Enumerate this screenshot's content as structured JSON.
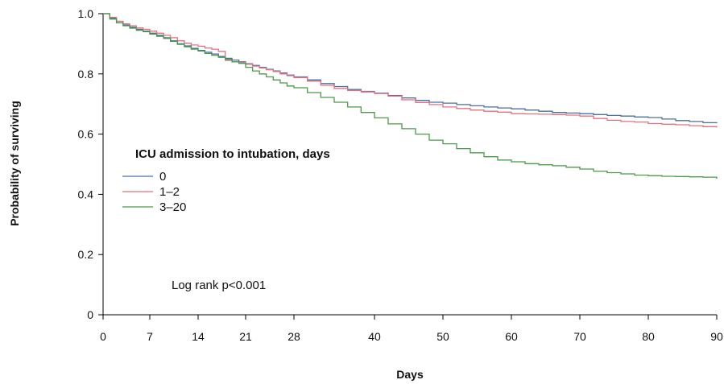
{
  "chart_data": {
    "type": "line",
    "subtype": "step",
    "xlabel": "Days",
    "ylabel": "Probability of surviving",
    "xlim": [
      0,
      90
    ],
    "ylim": [
      0,
      1.0
    ],
    "x_ticks": [
      0,
      7,
      14,
      21,
      28,
      40,
      50,
      60,
      70,
      80,
      90
    ],
    "y_ticks": [
      0,
      0.2,
      0.4,
      0.6,
      0.8,
      1.0
    ],
    "y_tick_labels": [
      "0",
      "0.2",
      "0.4",
      "0.6",
      "0.8",
      "1.0"
    ],
    "x_axis_scale": "piecewise: days 0-28 wider spacing, days 28-90 compressed",
    "grid": false,
    "legend_title": "ICU admission to intubation, days",
    "legend_position": "left-middle",
    "annotation": "Log rank p<0.001",
    "series": [
      {
        "name": "0",
        "color": "#4a6fa5",
        "x": [
          0,
          1,
          2,
          3,
          4,
          5,
          6,
          7,
          8,
          9,
          10,
          11,
          12,
          13,
          14,
          15,
          16,
          17,
          18,
          19,
          20,
          21,
          22,
          23,
          24,
          25,
          26,
          27,
          28,
          30,
          32,
          34,
          36,
          38,
          40,
          42,
          44,
          46,
          48,
          50,
          52,
          54,
          56,
          58,
          60,
          62,
          64,
          66,
          68,
          70,
          72,
          74,
          76,
          78,
          80,
          82,
          84,
          86,
          88,
          90
        ],
        "y": [
          1.0,
          0.985,
          0.97,
          0.962,
          0.955,
          0.948,
          0.942,
          0.935,
          0.928,
          0.92,
          0.91,
          0.9,
          0.893,
          0.885,
          0.878,
          0.872,
          0.866,
          0.858,
          0.852,
          0.846,
          0.84,
          0.834,
          0.828,
          0.822,
          0.815,
          0.81,
          0.803,
          0.796,
          0.79,
          0.78,
          0.768,
          0.758,
          0.748,
          0.742,
          0.736,
          0.728,
          0.72,
          0.712,
          0.706,
          0.703,
          0.698,
          0.694,
          0.69,
          0.687,
          0.684,
          0.68,
          0.676,
          0.672,
          0.67,
          0.668,
          0.665,
          0.662,
          0.66,
          0.657,
          0.655,
          0.65,
          0.645,
          0.642,
          0.638,
          0.636
        ]
      },
      {
        "name": "1–2",
        "color": "#e8707e",
        "x": [
          0,
          1,
          2,
          3,
          4,
          5,
          6,
          7,
          8,
          9,
          10,
          11,
          12,
          13,
          14,
          15,
          16,
          17,
          18,
          19,
          20,
          21,
          22,
          23,
          24,
          25,
          26,
          27,
          28,
          30,
          32,
          34,
          36,
          38,
          40,
          42,
          44,
          46,
          48,
          50,
          52,
          54,
          56,
          58,
          60,
          62,
          64,
          66,
          68,
          70,
          72,
          74,
          76,
          78,
          80,
          82,
          84,
          86,
          88,
          90
        ],
        "y": [
          1.0,
          0.988,
          0.975,
          0.966,
          0.96,
          0.953,
          0.948,
          0.942,
          0.935,
          0.928,
          0.92,
          0.91,
          0.902,
          0.896,
          0.892,
          0.886,
          0.882,
          0.875,
          0.845,
          0.84,
          0.838,
          0.832,
          0.826,
          0.82,
          0.814,
          0.808,
          0.8,
          0.794,
          0.788,
          0.776,
          0.762,
          0.752,
          0.745,
          0.74,
          0.735,
          0.726,
          0.714,
          0.705,
          0.698,
          0.69,
          0.685,
          0.68,
          0.676,
          0.673,
          0.668,
          0.667,
          0.666,
          0.665,
          0.663,
          0.66,
          0.652,
          0.646,
          0.642,
          0.64,
          0.635,
          0.633,
          0.631,
          0.628,
          0.625,
          0.622
        ]
      },
      {
        "name": "3–20",
        "color": "#4a9a4a",
        "x": [
          0,
          1,
          2,
          3,
          4,
          5,
          6,
          7,
          8,
          9,
          10,
          11,
          12,
          13,
          14,
          15,
          16,
          17,
          18,
          19,
          20,
          21,
          22,
          23,
          24,
          25,
          26,
          27,
          28,
          30,
          32,
          34,
          36,
          38,
          40,
          42,
          44,
          46,
          48,
          50,
          52,
          54,
          56,
          58,
          60,
          62,
          64,
          66,
          68,
          70,
          72,
          74,
          76,
          78,
          80,
          82,
          84,
          86,
          88,
          90
        ],
        "y": [
          1.0,
          0.982,
          0.97,
          0.96,
          0.952,
          0.945,
          0.94,
          0.932,
          0.925,
          0.918,
          0.908,
          0.898,
          0.89,
          0.882,
          0.876,
          0.868,
          0.862,
          0.855,
          0.848,
          0.84,
          0.835,
          0.822,
          0.81,
          0.8,
          0.79,
          0.78,
          0.77,
          0.76,
          0.754,
          0.738,
          0.722,
          0.706,
          0.69,
          0.672,
          0.654,
          0.634,
          0.618,
          0.6,
          0.58,
          0.568,
          0.552,
          0.538,
          0.525,
          0.514,
          0.508,
          0.502,
          0.498,
          0.495,
          0.49,
          0.484,
          0.477,
          0.472,
          0.468,
          0.464,
          0.462,
          0.46,
          0.459,
          0.458,
          0.457,
          0.452
        ]
      }
    ]
  }
}
